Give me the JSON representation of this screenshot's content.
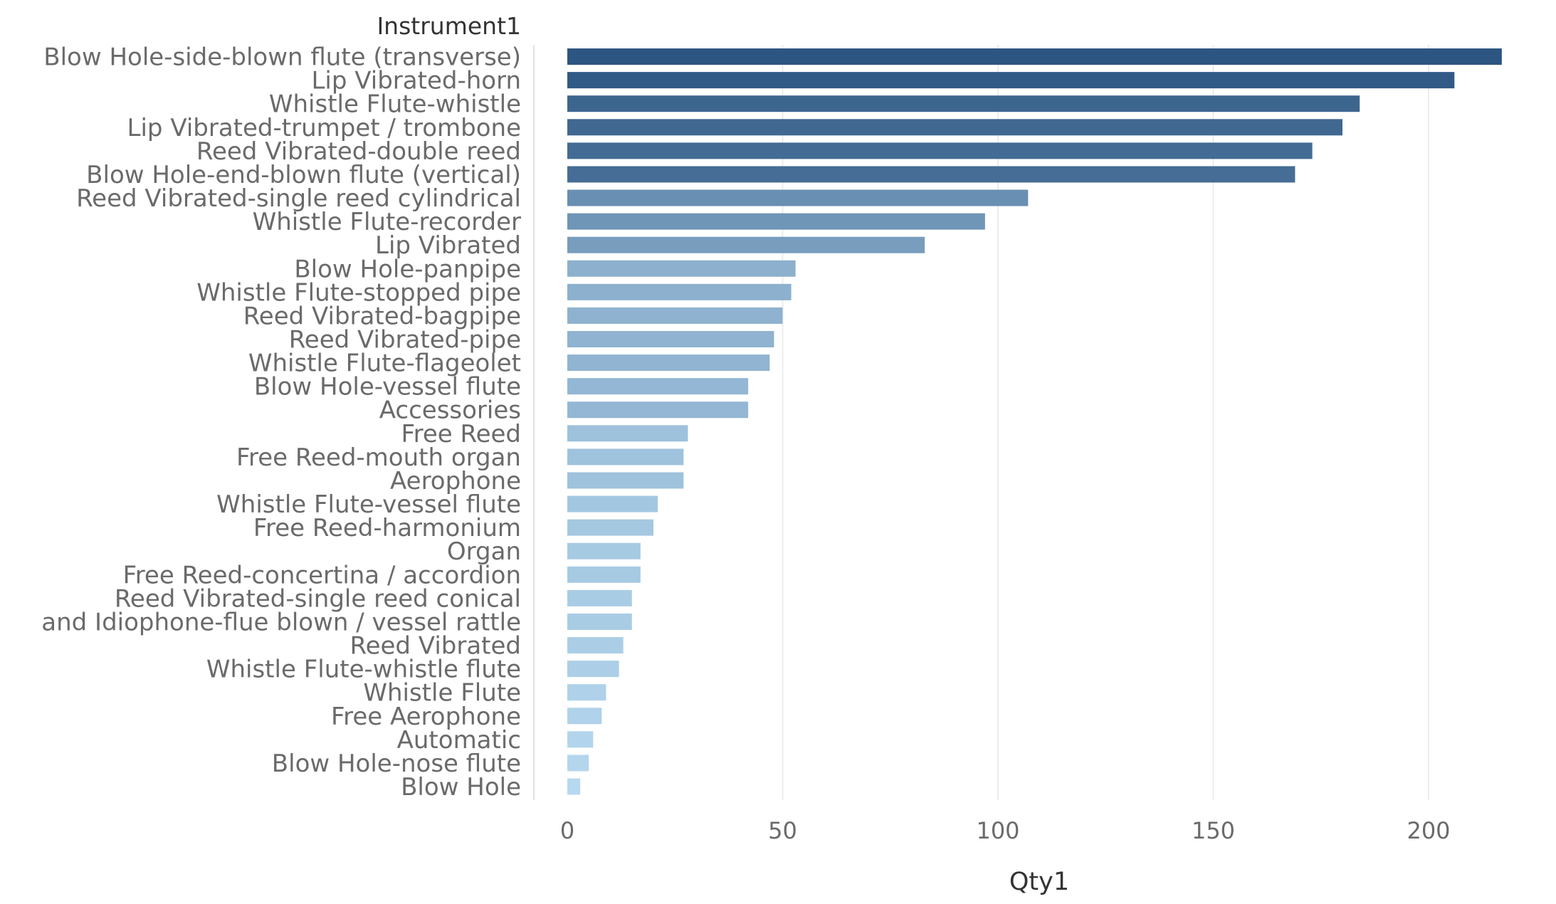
{
  "chart_data": {
    "type": "bar",
    "orientation": "horizontal",
    "header": "Instrument1",
    "xlabel": "Qty1",
    "ylabel": "",
    "xlim": [
      0,
      225
    ],
    "xticks": [
      0,
      50,
      100,
      150,
      200
    ],
    "grid": true,
    "categories": [
      "Blow Hole-side-blown flute (transverse)",
      "Lip Vibrated-horn",
      "Whistle Flute-whistle",
      "Lip Vibrated-trumpet / trombone",
      "Reed Vibrated-double reed",
      "Blow Hole-end-blown flute (vertical)",
      "Reed Vibrated-single reed cylindrical",
      "Whistle Flute-recorder",
      "Lip Vibrated",
      "Blow Hole-panpipe",
      "Whistle Flute-stopped pipe",
      "Reed Vibrated-bagpipe",
      "Reed Vibrated-pipe",
      "Whistle Flute-flageolet",
      "Blow Hole-vessel flute",
      "Accessories",
      "Free Reed",
      "Free Reed-mouth organ",
      "Aerophone",
      "Whistle Flute-vessel flute",
      "Free Reed-harmonium",
      "Organ",
      "Free Reed-concertina / accordion",
      "Reed Vibrated-single reed conical",
      "and Idiophone-flue blown / vessel rattle",
      "Reed Vibrated",
      "Whistle Flute-whistle flute",
      "Whistle Flute",
      "Free Aerophone",
      "Automatic",
      "Blow Hole-nose flute",
      "Blow Hole"
    ],
    "values": [
      217,
      206,
      184,
      180,
      173,
      169,
      107,
      97,
      83,
      53,
      52,
      50,
      48,
      47,
      42,
      42,
      28,
      27,
      27,
      21,
      20,
      17,
      17,
      15,
      15,
      13,
      12,
      9,
      8,
      6,
      5,
      3
    ],
    "color_scale": {
      "low": "#b7d9f0",
      "high": "#2c5581"
    }
  }
}
